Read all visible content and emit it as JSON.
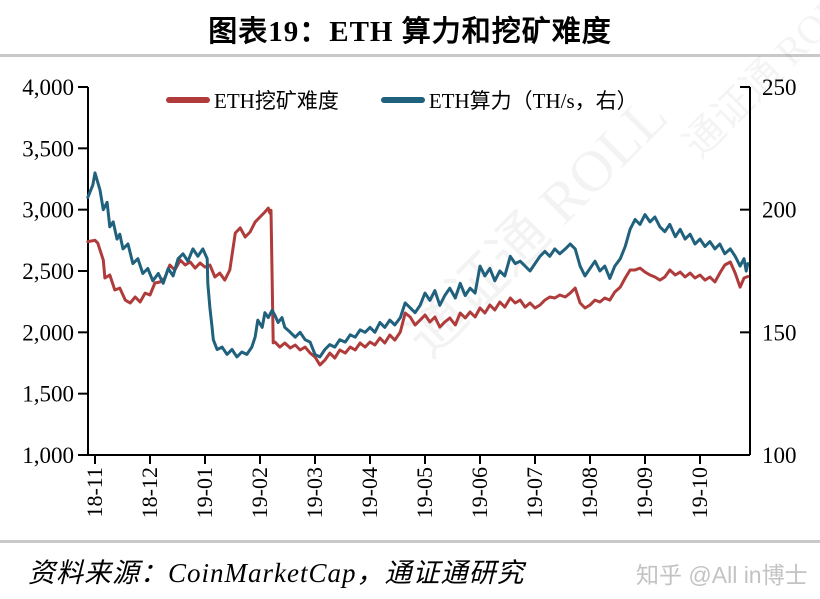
{
  "title": "图表19：ETH 算力和挖矿难度",
  "footer": {
    "source": "资料来源：CoinMarketCap，通证通研究",
    "watermark": "知乎 @All in博士"
  },
  "diagonal_watermark": "通证通 ROLL",
  "colors": {
    "difficulty": "#b03b3b",
    "hashrate": "#20617d",
    "axis": "#000000",
    "divider": "#c9c9c9",
    "watermark_gray": "#c3c3c3"
  },
  "legend": [
    {
      "label": "ETH挖矿难度",
      "color": "#b03b3b"
    },
    {
      "label": "ETH算力（TH/s，右）",
      "color": "#20617d"
    }
  ],
  "chart_data": {
    "type": "line",
    "title": "图表19：ETH 算力和挖矿难度",
    "grid": false,
    "legend_position": "top-inside",
    "x_unit": "months since 2018-11",
    "x_tick_labels": [
      "18-11",
      "18-12",
      "19-01",
      "19-02",
      "19-03",
      "19-04",
      "19-05",
      "19-06",
      "19-07",
      "19-08",
      "19-09",
      "19-10"
    ],
    "left_axis": {
      "name": "ETH挖矿难度",
      "min": 1000,
      "max": 4000,
      "ticks": [
        1000,
        1500,
        2000,
        2500,
        3000,
        3500,
        4000
      ]
    },
    "right_axis": {
      "name": "ETH算力（TH/s）",
      "min": 100,
      "max": 250,
      "ticks": [
        100,
        150,
        200,
        250
      ]
    },
    "series": [
      {
        "name": "ETH挖矿难度",
        "axis": "left",
        "color": "#b03b3b",
        "points": [
          [
            -0.13,
            2740
          ],
          [
            0,
            2750
          ],
          [
            0.05,
            2727
          ],
          [
            0.15,
            2589
          ],
          [
            0.18,
            2443
          ],
          [
            0.27,
            2467
          ],
          [
            0.36,
            2345
          ],
          [
            0.45,
            2361
          ],
          [
            0.55,
            2263
          ],
          [
            0.64,
            2239
          ],
          [
            0.73,
            2288
          ],
          [
            0.82,
            2247
          ],
          [
            0.91,
            2320
          ],
          [
            1.0,
            2304
          ],
          [
            1.09,
            2402
          ],
          [
            1.18,
            2410
          ],
          [
            1.27,
            2443
          ],
          [
            1.36,
            2549
          ],
          [
            1.45,
            2508
          ],
          [
            1.55,
            2589
          ],
          [
            1.64,
            2549
          ],
          [
            1.73,
            2573
          ],
          [
            1.82,
            2524
          ],
          [
            1.91,
            2565
          ],
          [
            2.0,
            2532
          ],
          [
            2.09,
            2549
          ],
          [
            2.18,
            2451
          ],
          [
            2.27,
            2483
          ],
          [
            2.36,
            2426
          ],
          [
            2.45,
            2508
          ],
          [
            2.55,
            2810
          ],
          [
            2.64,
            2851
          ],
          [
            2.73,
            2777
          ],
          [
            2.82,
            2818
          ],
          [
            2.91,
            2899
          ],
          [
            3.0,
            2940
          ],
          [
            3.09,
            2981
          ],
          [
            3.15,
            3013
          ],
          [
            3.18,
            2973
          ],
          [
            3.2,
            2995
          ],
          [
            3.24,
            1915
          ],
          [
            3.27,
            1921
          ],
          [
            3.36,
            1880
          ],
          [
            3.45,
            1913
          ],
          [
            3.55,
            1872
          ],
          [
            3.64,
            1897
          ],
          [
            3.73,
            1856
          ],
          [
            3.82,
            1880
          ],
          [
            3.91,
            1831
          ],
          [
            4.0,
            1800
          ],
          [
            4.09,
            1734
          ],
          [
            4.18,
            1774
          ],
          [
            4.27,
            1831
          ],
          [
            4.36,
            1790
          ],
          [
            4.45,
            1856
          ],
          [
            4.55,
            1831
          ],
          [
            4.64,
            1880
          ],
          [
            4.73,
            1856
          ],
          [
            4.82,
            1913
          ],
          [
            4.91,
            1880
          ],
          [
            5.0,
            1921
          ],
          [
            5.09,
            1897
          ],
          [
            5.18,
            1954
          ],
          [
            5.27,
            1913
          ],
          [
            5.36,
            1978
          ],
          [
            5.45,
            1937
          ],
          [
            5.55,
            2003
          ],
          [
            5.64,
            2158
          ],
          [
            5.73,
            2125
          ],
          [
            5.82,
            2060
          ],
          [
            5.91,
            2100
          ],
          [
            6.0,
            2141
          ],
          [
            6.09,
            2084
          ],
          [
            6.18,
            2125
          ],
          [
            6.27,
            2043
          ],
          [
            6.36,
            2084
          ],
          [
            6.45,
            2117
          ],
          [
            6.55,
            2060
          ],
          [
            6.64,
            2158
          ],
          [
            6.73,
            2117
          ],
          [
            6.82,
            2166
          ],
          [
            6.91,
            2125
          ],
          [
            7.0,
            2198
          ],
          [
            7.09,
            2158
          ],
          [
            7.18,
            2223
          ],
          [
            7.27,
            2182
          ],
          [
            7.36,
            2247
          ],
          [
            7.45,
            2206
          ],
          [
            7.55,
            2280
          ],
          [
            7.64,
            2239
          ],
          [
            7.73,
            2263
          ],
          [
            7.82,
            2206
          ],
          [
            7.91,
            2239
          ],
          [
            8.0,
            2198
          ],
          [
            8.09,
            2223
          ],
          [
            8.18,
            2263
          ],
          [
            8.27,
            2288
          ],
          [
            8.36,
            2280
          ],
          [
            8.45,
            2304
          ],
          [
            8.55,
            2288
          ],
          [
            8.64,
            2320
          ],
          [
            8.73,
            2361
          ],
          [
            8.82,
            2239
          ],
          [
            8.91,
            2198
          ],
          [
            9.0,
            2223
          ],
          [
            9.09,
            2263
          ],
          [
            9.18,
            2247
          ],
          [
            9.27,
            2280
          ],
          [
            9.36,
            2263
          ],
          [
            9.45,
            2329
          ],
          [
            9.55,
            2369
          ],
          [
            9.64,
            2443
          ],
          [
            9.73,
            2508
          ],
          [
            9.82,
            2508
          ],
          [
            9.91,
            2524
          ],
          [
            10.0,
            2491
          ],
          [
            10.09,
            2467
          ],
          [
            10.18,
            2451
          ],
          [
            10.27,
            2426
          ],
          [
            10.36,
            2451
          ],
          [
            10.45,
            2508
          ],
          [
            10.55,
            2467
          ],
          [
            10.64,
            2491
          ],
          [
            10.73,
            2451
          ],
          [
            10.82,
            2483
          ],
          [
            10.91,
            2443
          ],
          [
            11.0,
            2467
          ],
          [
            11.09,
            2426
          ],
          [
            11.18,
            2451
          ],
          [
            11.27,
            2410
          ],
          [
            11.36,
            2483
          ],
          [
            11.45,
            2549
          ],
          [
            11.55,
            2573
          ],
          [
            11.64,
            2483
          ],
          [
            11.73,
            2369
          ],
          [
            11.8,
            2443
          ],
          [
            11.87,
            2455
          ]
        ]
      },
      {
        "name": "ETH算力（TH/s，右）",
        "axis": "right",
        "color": "#20617d",
        "points": [
          [
            -0.13,
            205
          ],
          [
            -0.04,
            210
          ],
          [
            0,
            215
          ],
          [
            0.09,
            208
          ],
          [
            0.15,
            200
          ],
          [
            0.22,
            203
          ],
          [
            0.27,
            193
          ],
          [
            0.33,
            195
          ],
          [
            0.4,
            188
          ],
          [
            0.45,
            190
          ],
          [
            0.51,
            184
          ],
          [
            0.6,
            186
          ],
          [
            0.69,
            178
          ],
          [
            0.78,
            180
          ],
          [
            0.87,
            174
          ],
          [
            0.96,
            176
          ],
          [
            1.05,
            171
          ],
          [
            1.15,
            174
          ],
          [
            1.24,
            170
          ],
          [
            1.33,
            176
          ],
          [
            1.42,
            173
          ],
          [
            1.51,
            180
          ],
          [
            1.6,
            182
          ],
          [
            1.69,
            179
          ],
          [
            1.78,
            184
          ],
          [
            1.87,
            181
          ],
          [
            1.96,
            184
          ],
          [
            2.04,
            180
          ],
          [
            2.05,
            170
          ],
          [
            2.09,
            160
          ],
          [
            2.13,
            152
          ],
          [
            2.15,
            147
          ],
          [
            2.22,
            143
          ],
          [
            2.31,
            144
          ],
          [
            2.4,
            141
          ],
          [
            2.49,
            143
          ],
          [
            2.58,
            140
          ],
          [
            2.67,
            142
          ],
          [
            2.76,
            141
          ],
          [
            2.85,
            144
          ],
          [
            2.91,
            148
          ],
          [
            2.96,
            155
          ],
          [
            3.04,
            152
          ],
          [
            3.09,
            158
          ],
          [
            3.15,
            156
          ],
          [
            3.22,
            159
          ],
          [
            3.27,
            157
          ],
          [
            3.33,
            154
          ],
          [
            3.4,
            156
          ],
          [
            3.45,
            152
          ],
          [
            3.55,
            150
          ],
          [
            3.64,
            148
          ],
          [
            3.73,
            150
          ],
          [
            3.82,
            147
          ],
          [
            3.91,
            146
          ],
          [
            4.0,
            141
          ],
          [
            4.09,
            140
          ],
          [
            4.18,
            143
          ],
          [
            4.27,
            145
          ],
          [
            4.36,
            144
          ],
          [
            4.45,
            147
          ],
          [
            4.55,
            146
          ],
          [
            4.64,
            149
          ],
          [
            4.73,
            148
          ],
          [
            4.82,
            151
          ],
          [
            4.91,
            150
          ],
          [
            5.0,
            152
          ],
          [
            5.09,
            150
          ],
          [
            5.18,
            154
          ],
          [
            5.27,
            152
          ],
          [
            5.36,
            155
          ],
          [
            5.45,
            153
          ],
          [
            5.55,
            156
          ],
          [
            5.64,
            162
          ],
          [
            5.73,
            160
          ],
          [
            5.82,
            158
          ],
          [
            5.91,
            161
          ],
          [
            6.0,
            166
          ],
          [
            6.09,
            163
          ],
          [
            6.18,
            167
          ],
          [
            6.27,
            161
          ],
          [
            6.36,
            165
          ],
          [
            6.45,
            168
          ],
          [
            6.55,
            164
          ],
          [
            6.64,
            170
          ],
          [
            6.73,
            165
          ],
          [
            6.82,
            168
          ],
          [
            6.91,
            166
          ],
          [
            7.0,
            177
          ],
          [
            7.09,
            173
          ],
          [
            7.18,
            176
          ],
          [
            7.27,
            171
          ],
          [
            7.36,
            175
          ],
          [
            7.45,
            173
          ],
          [
            7.55,
            181
          ],
          [
            7.64,
            178
          ],
          [
            7.73,
            179
          ],
          [
            7.82,
            177
          ],
          [
            7.91,
            175
          ],
          [
            8.0,
            178
          ],
          [
            8.09,
            181
          ],
          [
            8.18,
            183
          ],
          [
            8.27,
            181
          ],
          [
            8.36,
            184
          ],
          [
            8.45,
            182
          ],
          [
            8.55,
            184
          ],
          [
            8.64,
            186
          ],
          [
            8.73,
            184
          ],
          [
            8.82,
            177
          ],
          [
            8.91,
            173
          ],
          [
            9.0,
            176
          ],
          [
            9.09,
            179
          ],
          [
            9.18,
            175
          ],
          [
            9.27,
            177
          ],
          [
            9.36,
            172
          ],
          [
            9.45,
            177
          ],
          [
            9.55,
            180
          ],
          [
            9.64,
            185
          ],
          [
            9.73,
            192
          ],
          [
            9.82,
            196
          ],
          [
            9.91,
            194
          ],
          [
            10.0,
            198
          ],
          [
            10.09,
            195
          ],
          [
            10.18,
            197
          ],
          [
            10.27,
            193
          ],
          [
            10.36,
            191
          ],
          [
            10.45,
            194
          ],
          [
            10.55,
            189
          ],
          [
            10.64,
            192
          ],
          [
            10.73,
            188
          ],
          [
            10.82,
            190
          ],
          [
            10.91,
            186
          ],
          [
            11.0,
            188
          ],
          [
            11.09,
            185
          ],
          [
            11.18,
            187
          ],
          [
            11.27,
            184
          ],
          [
            11.36,
            186
          ],
          [
            11.45,
            182
          ],
          [
            11.55,
            184
          ],
          [
            11.64,
            181
          ],
          [
            11.73,
            177
          ],
          [
            11.8,
            180
          ],
          [
            11.84,
            175
          ],
          [
            11.87,
            178
          ]
        ]
      }
    ]
  }
}
